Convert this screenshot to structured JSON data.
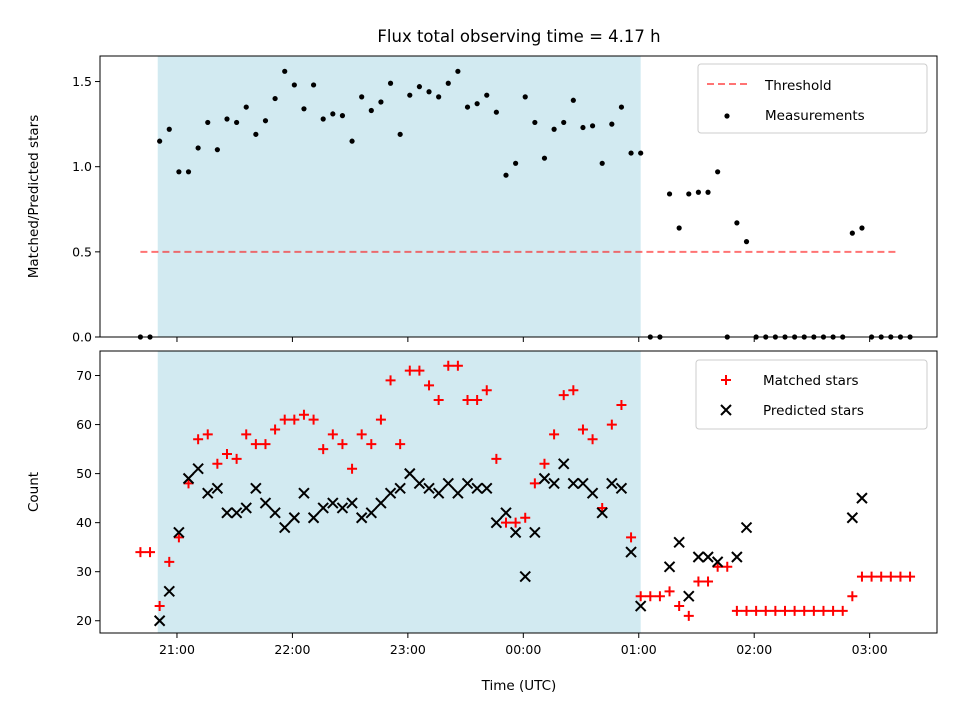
{
  "chart_data": {
    "title": "Flux total observing time = 4.17 h",
    "xlabel": "Time (UTC)",
    "x_ticks": [
      "21:00",
      "22:00",
      "23:00",
      "00:00",
      "01:00",
      "02:00",
      "03:00"
    ],
    "shaded_interval": [
      "20:50",
      "01:01"
    ],
    "colors": {
      "shade": "#add8e6",
      "threshold": "#ff0000",
      "measurement": "#000000",
      "matched": "#ff0000",
      "predicted": "#000000"
    },
    "panels": [
      {
        "type": "scatter",
        "ylabel": "Matched/Predicted stars",
        "ylim": [
          0,
          1.65
        ],
        "y_ticks": [
          "0.0",
          "0.5",
          "1.0",
          "1.5"
        ],
        "legend_position": "top-right",
        "threshold": {
          "name": "Threshold",
          "y": 0.5,
          "x_start": "20:41",
          "x_end": "03:14"
        },
        "series": [
          {
            "name": "Measurements",
            "points": [
              [
                "20:41",
                0
              ],
              [
                "20:46",
                0
              ],
              [
                "20:51",
                1.15
              ],
              [
                "20:56",
                1.22
              ],
              [
                "21:01",
                0.97
              ],
              [
                "21:06",
                0.97
              ],
              [
                "21:11",
                1.11
              ],
              [
                "21:16",
                1.26
              ],
              [
                "21:21",
                1.1
              ],
              [
                "21:26",
                1.28
              ],
              [
                "21:31",
                1.26
              ],
              [
                "21:36",
                1.35
              ],
              [
                "21:41",
                1.19
              ],
              [
                "21:46",
                1.27
              ],
              [
                "21:51",
                1.4
              ],
              [
                "21:56",
                1.56
              ],
              [
                "22:01",
                1.48
              ],
              [
                "22:06",
                1.34
              ],
              [
                "22:11",
                1.48
              ],
              [
                "22:16",
                1.28
              ],
              [
                "22:21",
                1.31
              ],
              [
                "22:26",
                1.3
              ],
              [
                "22:31",
                1.15
              ],
              [
                "22:36",
                1.41
              ],
              [
                "22:41",
                1.33
              ],
              [
                "22:46",
                1.38
              ],
              [
                "22:51",
                1.49
              ],
              [
                "22:56",
                1.19
              ],
              [
                "23:01",
                1.42
              ],
              [
                "23:06",
                1.47
              ],
              [
                "23:11",
                1.44
              ],
              [
                "23:16",
                1.41
              ],
              [
                "23:21",
                1.49
              ],
              [
                "23:26",
                1.56
              ],
              [
                "23:31",
                1.35
              ],
              [
                "23:36",
                1.37
              ],
              [
                "23:41",
                1.42
              ],
              [
                "23:46",
                1.32
              ],
              [
                "23:51",
                0.95
              ],
              [
                "23:56",
                1.02
              ],
              [
                "00:01",
                1.41
              ],
              [
                "00:06",
                1.26
              ],
              [
                "00:11",
                1.05
              ],
              [
                "00:16",
                1.22
              ],
              [
                "00:21",
                1.26
              ],
              [
                "00:26",
                1.39
              ],
              [
                "00:31",
                1.23
              ],
              [
                "00:36",
                1.24
              ],
              [
                "00:41",
                1.02
              ],
              [
                "00:46",
                1.25
              ],
              [
                "00:51",
                1.35
              ],
              [
                "00:56",
                1.08
              ],
              [
                "01:01",
                1.08
              ],
              [
                "01:06",
                0
              ],
              [
                "01:11",
                0
              ],
              [
                "01:16",
                0.84
              ],
              [
                "01:21",
                0.64
              ],
              [
                "01:26",
                0.84
              ],
              [
                "01:31",
                0.85
              ],
              [
                "01:36",
                0.85
              ],
              [
                "01:41",
                0.97
              ],
              [
                "01:46",
                0
              ],
              [
                "01:51",
                0.67
              ],
              [
                "01:56",
                0.56
              ],
              [
                "02:01",
                0
              ],
              [
                "02:06",
                0
              ],
              [
                "02:11",
                0
              ],
              [
                "02:16",
                0
              ],
              [
                "02:21",
                0
              ],
              [
                "02:26",
                0
              ],
              [
                "02:31",
                0
              ],
              [
                "02:36",
                0
              ],
              [
                "02:41",
                0
              ],
              [
                "02:46",
                0
              ],
              [
                "02:51",
                0.61
              ],
              [
                "02:56",
                0.64
              ],
              [
                "03:01",
                0
              ],
              [
                "03:06",
                0
              ],
              [
                "03:11",
                0
              ],
              [
                "03:16",
                0
              ],
              [
                "03:21",
                0
              ]
            ]
          }
        ]
      },
      {
        "type": "scatter",
        "ylabel": "Count",
        "ylim": [
          17.5,
          75
        ],
        "y_ticks": [
          "20",
          "30",
          "40",
          "50",
          "60",
          "70"
        ],
        "legend_position": "top-right",
        "series": [
          {
            "name": "Matched stars",
            "marker": "plus",
            "points": [
              [
                "20:41",
                34
              ],
              [
                "20:46",
                34
              ],
              [
                "20:51",
                23
              ],
              [
                "20:56",
                32
              ],
              [
                "21:01",
                37
              ],
              [
                "21:06",
                48
              ],
              [
                "21:11",
                57
              ],
              [
                "21:16",
                58
              ],
              [
                "21:21",
                52
              ],
              [
                "21:26",
                54
              ],
              [
                "21:31",
                53
              ],
              [
                "21:36",
                58
              ],
              [
                "21:41",
                56
              ],
              [
                "21:46",
                56
              ],
              [
                "21:51",
                59
              ],
              [
                "21:56",
                61
              ],
              [
                "22:01",
                61
              ],
              [
                "22:06",
                62
              ],
              [
                "22:11",
                61
              ],
              [
                "22:16",
                55
              ],
              [
                "22:21",
                58
              ],
              [
                "22:26",
                56
              ],
              [
                "22:31",
                51
              ],
              [
                "22:36",
                58
              ],
              [
                "22:41",
                56
              ],
              [
                "22:46",
                61
              ],
              [
                "22:51",
                69
              ],
              [
                "22:56",
                56
              ],
              [
                "23:01",
                71
              ],
              [
                "23:06",
                71
              ],
              [
                "23:11",
                68
              ],
              [
                "23:16",
                65
              ],
              [
                "23:21",
                72
              ],
              [
                "23:26",
                72
              ],
              [
                "23:31",
                65
              ],
              [
                "23:36",
                65
              ],
              [
                "23:41",
                67
              ],
              [
                "23:46",
                53
              ],
              [
                "23:51",
                40
              ],
              [
                "23:56",
                40
              ],
              [
                "00:01",
                41
              ],
              [
                "00:06",
                48
              ],
              [
                "00:11",
                52
              ],
              [
                "00:16",
                58
              ],
              [
                "00:21",
                66
              ],
              [
                "00:26",
                67
              ],
              [
                "00:31",
                59
              ],
              [
                "00:36",
                57
              ],
              [
                "00:41",
                43
              ],
              [
                "00:46",
                60
              ],
              [
                "00:51",
                64
              ],
              [
                "00:56",
                37
              ],
              [
                "01:01",
                25
              ],
              [
                "01:06",
                25
              ],
              [
                "01:11",
                25
              ],
              [
                "01:16",
                26
              ],
              [
                "01:21",
                23
              ],
              [
                "01:26",
                21
              ],
              [
                "01:31",
                28
              ],
              [
                "01:36",
                28
              ],
              [
                "01:41",
                31
              ],
              [
                "01:46",
                31
              ],
              [
                "01:51",
                22
              ],
              [
                "01:56",
                22
              ],
              [
                "02:01",
                22
              ],
              [
                "02:06",
                22
              ],
              [
                "02:11",
                22
              ],
              [
                "02:16",
                22
              ],
              [
                "02:21",
                22
              ],
              [
                "02:26",
                22
              ],
              [
                "02:31",
                22
              ],
              [
                "02:36",
                22
              ],
              [
                "02:41",
                22
              ],
              [
                "02:46",
                22
              ],
              [
                "02:51",
                25
              ],
              [
                "02:56",
                29
              ],
              [
                "03:01",
                29
              ],
              [
                "03:06",
                29
              ],
              [
                "03:11",
                29
              ],
              [
                "03:16",
                29
              ],
              [
                "03:21",
                29
              ]
            ]
          },
          {
            "name": "Predicted stars",
            "marker": "x",
            "points": [
              [
                "20:51",
                20
              ],
              [
                "20:56",
                26
              ],
              [
                "21:01",
                38
              ],
              [
                "21:06",
                49
              ],
              [
                "21:11",
                51
              ],
              [
                "21:16",
                46
              ],
              [
                "21:21",
                47
              ],
              [
                "21:26",
                42
              ],
              [
                "21:31",
                42
              ],
              [
                "21:36",
                43
              ],
              [
                "21:41",
                47
              ],
              [
                "21:46",
                44
              ],
              [
                "21:51",
                42
              ],
              [
                "21:56",
                39
              ],
              [
                "22:01",
                41
              ],
              [
                "22:06",
                46
              ],
              [
                "22:11",
                41
              ],
              [
                "22:16",
                43
              ],
              [
                "22:21",
                44
              ],
              [
                "22:26",
                43
              ],
              [
                "22:31",
                44
              ],
              [
                "22:36",
                41
              ],
              [
                "22:41",
                42
              ],
              [
                "22:46",
                44
              ],
              [
                "22:51",
                46
              ],
              [
                "22:56",
                47
              ],
              [
                "23:01",
                50
              ],
              [
                "23:06",
                48
              ],
              [
                "23:11",
                47
              ],
              [
                "23:16",
                46
              ],
              [
                "23:21",
                48
              ],
              [
                "23:26",
                46
              ],
              [
                "23:31",
                48
              ],
              [
                "23:36",
                47
              ],
              [
                "23:41",
                47
              ],
              [
                "23:46",
                40
              ],
              [
                "23:51",
                42
              ],
              [
                "23:56",
                38
              ],
              [
                "00:01",
                29
              ],
              [
                "00:06",
                38
              ],
              [
                "00:11",
                49
              ],
              [
                "00:16",
                48
              ],
              [
                "00:21",
                52
              ],
              [
                "00:26",
                48
              ],
              [
                "00:31",
                48
              ],
              [
                "00:36",
                46
              ],
              [
                "00:41",
                42
              ],
              [
                "00:46",
                48
              ],
              [
                "00:51",
                47
              ],
              [
                "00:56",
                34
              ],
              [
                "01:01",
                23
              ],
              [
                "01:16",
                31
              ],
              [
                "01:21",
                36
              ],
              [
                "01:26",
                25
              ],
              [
                "01:31",
                33
              ],
              [
                "01:36",
                33
              ],
              [
                "01:41",
                32
              ],
              [
                "01:51",
                33
              ],
              [
                "01:56",
                39
              ],
              [
                "02:51",
                41
              ],
              [
                "02:56",
                45
              ]
            ]
          }
        ]
      }
    ]
  }
}
